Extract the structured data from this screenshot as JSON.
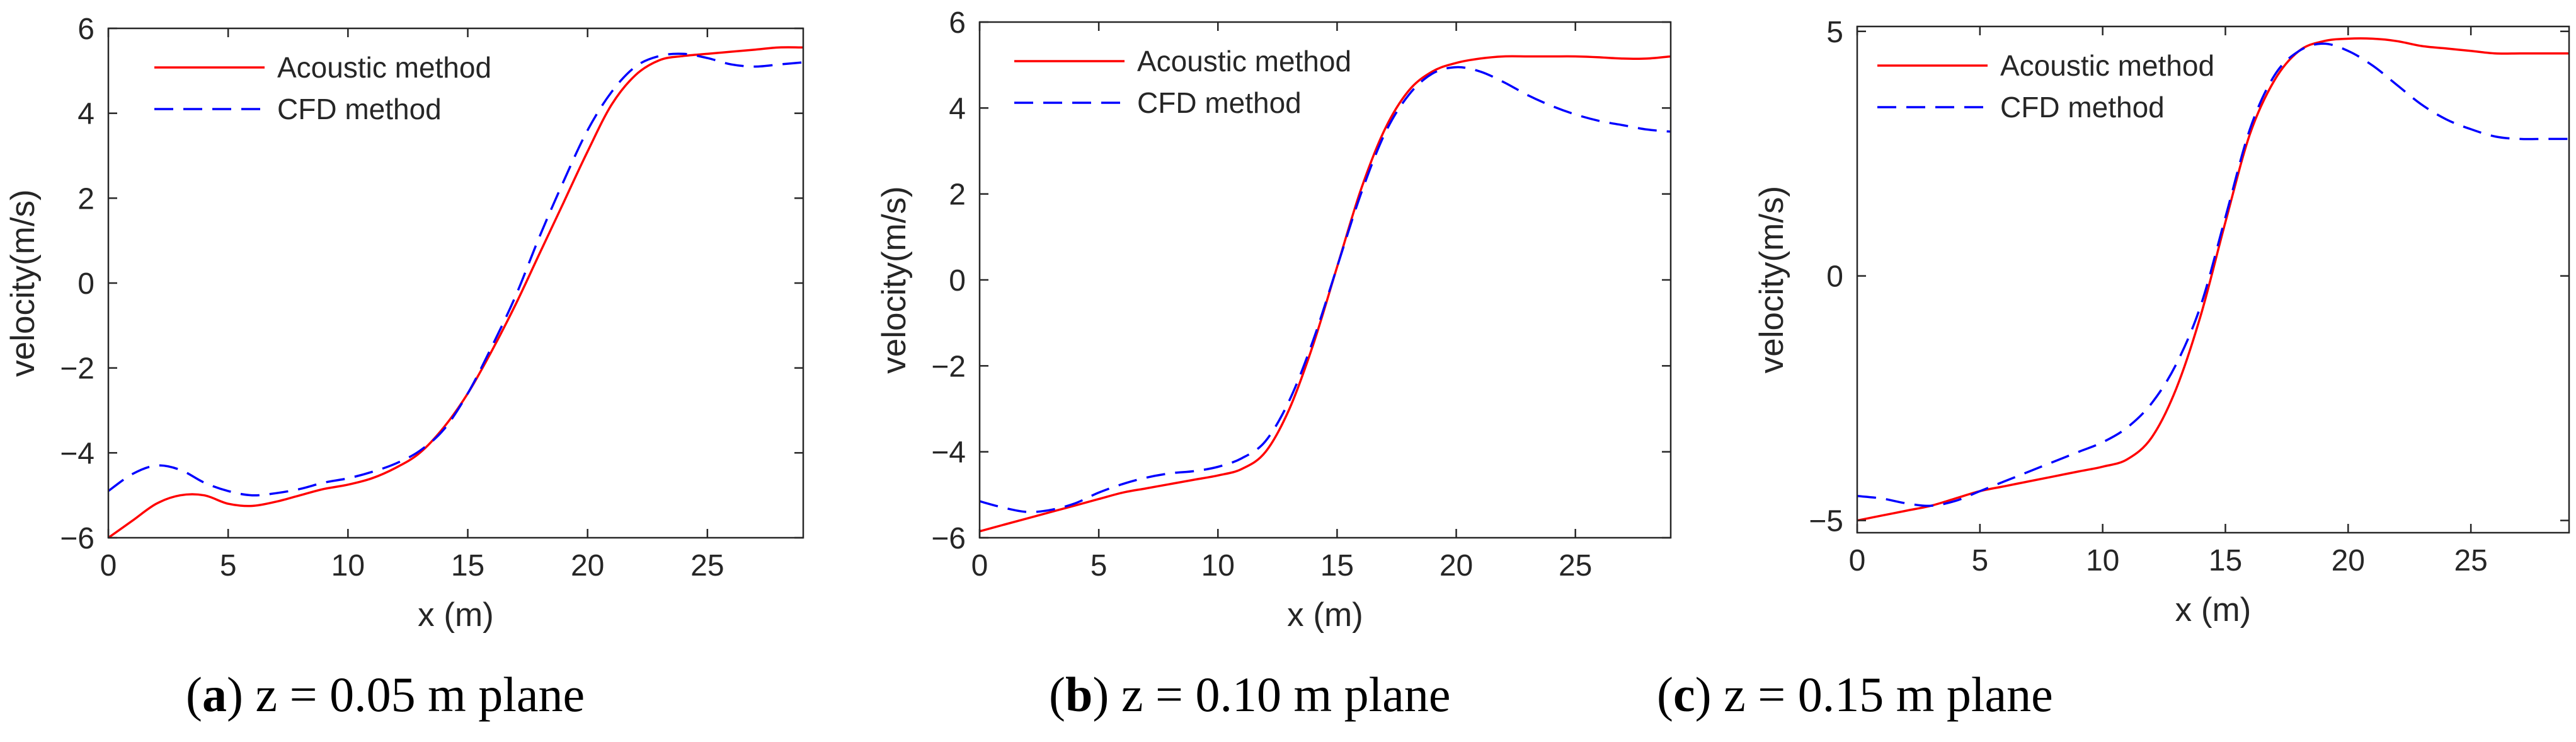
{
  "figure": {
    "captions": [
      {
        "open": "(",
        "letter": "a",
        "rest": ") z = 0.05 m plane"
      },
      {
        "open": "(",
        "letter": "b",
        "rest": ") z = 0.10 m plane"
      },
      {
        "open": "(",
        "letter": "c",
        "rest": ") z = 0.15 m plane"
      }
    ]
  },
  "colors": {
    "acoustic": "#ff0000",
    "cfd": "#0000ff",
    "axis": "#262626"
  },
  "chart_data": [
    {
      "type": "line",
      "panel": "a",
      "xlabel": "x (m)",
      "ylabel": "velocity(m/s)",
      "xlim": [
        0,
        29
      ],
      "ylim": [
        -6,
        6
      ],
      "xticks": [
        0,
        5,
        10,
        15,
        20,
        25
      ],
      "xtick_labels": [
        "0",
        "5",
        "10",
        "15",
        "20",
        "25"
      ],
      "yticks": [
        -6,
        -4,
        -2,
        0,
        2,
        4,
        6
      ],
      "ytick_labels": [
        "−6",
        "−4",
        "−2",
        "0",
        "2",
        "4",
        "6"
      ],
      "legend_position": "top-left",
      "series": [
        {
          "name": "Acoustic method",
          "style": "solid",
          "color": "#ff0000",
          "x": [
            0,
            1,
            2,
            3,
            4,
            5,
            6,
            7,
            8,
            9,
            10,
            11,
            12,
            13,
            14,
            15,
            16,
            17,
            18,
            19,
            20,
            21,
            22,
            23,
            24,
            25,
            26,
            27,
            28,
            29
          ],
          "y": [
            -6.0,
            -5.6,
            -5.2,
            -5.0,
            -5.0,
            -5.2,
            -5.25,
            -5.15,
            -5.0,
            -4.85,
            -4.75,
            -4.6,
            -4.35,
            -4.0,
            -3.4,
            -2.6,
            -1.6,
            -0.5,
            0.7,
            1.9,
            3.1,
            4.2,
            4.9,
            5.25,
            5.35,
            5.4,
            5.45,
            5.5,
            5.55,
            5.55
          ]
        },
        {
          "name": "CFD method",
          "style": "dashed",
          "color": "#0000ff",
          "x": [
            0,
            1,
            2,
            3,
            4,
            5,
            6,
            7,
            8,
            9,
            10,
            11,
            12,
            13,
            14,
            15,
            16,
            17,
            18,
            19,
            20,
            21,
            22,
            23,
            24,
            25,
            26,
            27,
            28,
            29
          ],
          "y": [
            -4.9,
            -4.5,
            -4.3,
            -4.4,
            -4.7,
            -4.9,
            -5.0,
            -4.95,
            -4.85,
            -4.7,
            -4.6,
            -4.45,
            -4.25,
            -3.95,
            -3.45,
            -2.6,
            -1.5,
            -0.3,
            1.1,
            2.4,
            3.6,
            4.5,
            5.1,
            5.35,
            5.4,
            5.3,
            5.15,
            5.1,
            5.15,
            5.2
          ]
        }
      ]
    },
    {
      "type": "line",
      "panel": "b",
      "xlabel": "x (m)",
      "ylabel": "velocity(m/s)",
      "xlim": [
        0,
        29
      ],
      "ylim": [
        -6,
        6
      ],
      "xticks": [
        0,
        5,
        10,
        15,
        20,
        25
      ],
      "xtick_labels": [
        "0",
        "5",
        "10",
        "15",
        "20",
        "25"
      ],
      "yticks": [
        -6,
        -4,
        -2,
        0,
        2,
        4,
        6
      ],
      "ytick_labels": [
        "−6",
        "−4",
        "−2",
        "0",
        "2",
        "4",
        "6"
      ],
      "legend_position": "top-right",
      "series": [
        {
          "name": "Acoustic method",
          "style": "solid",
          "color": "#ff0000",
          "x": [
            0,
            1,
            2,
            3,
            4,
            5,
            6,
            7,
            8,
            9,
            10,
            11,
            12,
            13,
            14,
            15,
            16,
            17,
            18,
            19,
            20,
            21,
            22,
            23,
            24,
            25,
            26,
            27,
            28,
            29
          ],
          "y": [
            -5.85,
            -5.7,
            -5.55,
            -5.4,
            -5.25,
            -5.1,
            -4.95,
            -4.85,
            -4.75,
            -4.65,
            -4.55,
            -4.4,
            -4.0,
            -3.0,
            -1.5,
            0.3,
            2.1,
            3.5,
            4.4,
            4.85,
            5.05,
            5.15,
            5.2,
            5.2,
            5.2,
            5.2,
            5.18,
            5.15,
            5.15,
            5.2
          ]
        },
        {
          "name": "CFD method",
          "style": "dashed",
          "color": "#0000ff",
          "x": [
            0,
            1,
            2,
            3,
            4,
            5,
            6,
            7,
            8,
            9,
            10,
            11,
            12,
            13,
            14,
            15,
            16,
            17,
            18,
            19,
            20,
            21,
            22,
            23,
            24,
            25,
            26,
            27,
            28,
            29
          ],
          "y": [
            -5.15,
            -5.3,
            -5.4,
            -5.35,
            -5.2,
            -4.95,
            -4.75,
            -4.6,
            -4.5,
            -4.45,
            -4.35,
            -4.15,
            -3.75,
            -2.8,
            -1.4,
            0.3,
            2.0,
            3.4,
            4.3,
            4.8,
            4.95,
            4.85,
            4.6,
            4.3,
            4.05,
            3.85,
            3.7,
            3.6,
            3.5,
            3.45
          ]
        }
      ]
    },
    {
      "type": "line",
      "panel": "c",
      "xlabel": "x (m)",
      "ylabel": "velocity(m/s)",
      "xlim": [
        0,
        29
      ],
      "ylim": [
        -5.25,
        5.1
      ],
      "xticks": [
        0,
        5,
        10,
        15,
        20,
        25
      ],
      "xtick_labels": [
        "0",
        "5",
        "10",
        "15",
        "20",
        "25"
      ],
      "yticks": [
        -5,
        0,
        5
      ],
      "ytick_labels": [
        "−5",
        "0",
        "5"
      ],
      "legend_position": "top-left",
      "series": [
        {
          "name": "Acoustic method",
          "style": "solid",
          "color": "#ff0000",
          "x": [
            0,
            1,
            2,
            3,
            4,
            5,
            6,
            7,
            8,
            9,
            10,
            11,
            12,
            13,
            14,
            15,
            16,
            17,
            18,
            19,
            20,
            21,
            22,
            23,
            24,
            25,
            26,
            27,
            28,
            29
          ],
          "y": [
            -5.0,
            -4.9,
            -4.8,
            -4.7,
            -4.55,
            -4.4,
            -4.3,
            -4.2,
            -4.1,
            -4.0,
            -3.9,
            -3.75,
            -3.3,
            -2.3,
            -0.8,
            1.1,
            2.9,
            4.0,
            4.6,
            4.8,
            4.85,
            4.85,
            4.8,
            4.7,
            4.65,
            4.6,
            4.55,
            4.55,
            4.55,
            4.55
          ]
        },
        {
          "name": "CFD method",
          "style": "dashed",
          "color": "#0000ff",
          "x": [
            0,
            1,
            2,
            3,
            4,
            5,
            6,
            7,
            8,
            9,
            10,
            11,
            12,
            13,
            14,
            15,
            16,
            17,
            18,
            19,
            20,
            21,
            22,
            23,
            24,
            25,
            26,
            27,
            28,
            29
          ],
          "y": [
            -4.5,
            -4.55,
            -4.65,
            -4.7,
            -4.6,
            -4.4,
            -4.2,
            -4.0,
            -3.8,
            -3.6,
            -3.4,
            -3.1,
            -2.6,
            -1.8,
            -0.6,
            1.2,
            3.0,
            4.1,
            4.6,
            4.75,
            4.6,
            4.3,
            3.9,
            3.5,
            3.2,
            3.0,
            2.85,
            2.8,
            2.8,
            2.8
          ]
        }
      ]
    }
  ]
}
